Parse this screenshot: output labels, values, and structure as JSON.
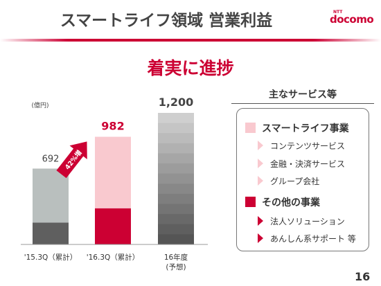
{
  "header": {
    "title": "スマートライフ領域 営業利益",
    "logo": {
      "small": "NTT",
      "word": "docomo"
    }
  },
  "headline": "着実に進捗",
  "services": {
    "title": "主なサービス等",
    "categories": [
      {
        "label": "スマートライフ事業",
        "color": "#f9c9cf",
        "items": [
          "コンテンツサービス",
          "金融・決済サービス",
          "グループ会社"
        ]
      },
      {
        "label": "その他の事業",
        "color": "#cc0033",
        "items": [
          "法人ソリューション",
          "あんしん系サポート 等"
        ]
      }
    ]
  },
  "page_number": "16",
  "chart_data": {
    "type": "bar",
    "stacked": true,
    "unit_label": "(億円)",
    "categories": [
      "'15.3Q（累計）",
      "'16.3Q（累計）",
      "16年度\n(予想)"
    ],
    "totals": [
      692,
      982,
      1200
    ],
    "total_labels": [
      "692",
      "982",
      "1,200"
    ],
    "segments": [
      {
        "other": 200,
        "smart_life": 492
      },
      {
        "other": 330,
        "smart_life": 652
      },
      null
    ],
    "colors": {
      "q15_smart_life": "#b9bfbe",
      "q15_other": "#5f5f5f",
      "q16_smart_life": "#f9c9cf",
      "q16_other": "#cc0033",
      "forecast_top": "#c8c8c8",
      "forecast_bottom": "#5a5a5a",
      "growth_arrow": "#cc0033"
    },
    "growth_annotation": "42%増",
    "ylim": [
      0,
      1200
    ],
    "grid": false
  }
}
